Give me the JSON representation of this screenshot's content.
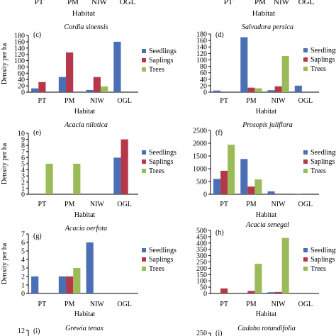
{
  "colors": {
    "seedlings": "#4a6fb5",
    "saplings": "#b5384a",
    "trees": "#9bbb59"
  },
  "top_strip": {
    "left": {
      "ticks": [
        "PT",
        "PM",
        "NIW",
        "OGL"
      ],
      "xlabel": "Habitat"
    },
    "right": {
      "ticks": [
        "PT",
        "PM",
        "NIW",
        "OGL"
      ],
      "xlabel": "Habitat"
    }
  },
  "legend": [
    "Seedlings",
    "Saplings",
    "Trees"
  ],
  "chart_data": [
    {
      "type": "bar",
      "panel": "(c)",
      "title": "Cordia sinensis",
      "categories": [
        "PT",
        "PM",
        "NIW",
        "OGL"
      ],
      "xlabel": "Habitat",
      "ylabel": "Density per ha",
      "ylim": [
        0,
        180
      ],
      "yticks": [
        0,
        20,
        40,
        60,
        80,
        100,
        120,
        140,
        160,
        180
      ],
      "legend": "right",
      "series": [
        {
          "name": "Seedlings",
          "values": [
            12,
            48,
            7,
            160
          ]
        },
        {
          "name": "Saplings",
          "values": [
            32,
            126,
            48,
            0
          ]
        },
        {
          "name": "Trees",
          "values": [
            0,
            0,
            18,
            0
          ]
        }
      ]
    },
    {
      "type": "bar",
      "panel": "(d)",
      "title": "Salvadora persica",
      "categories": [
        "PT",
        "PM",
        "NIW",
        "OGL"
      ],
      "xlabel": "Habitat",
      "ylabel": "",
      "ylim": [
        0,
        180
      ],
      "yticks": [
        0,
        20,
        40,
        60,
        80,
        100,
        120,
        140,
        160,
        180
      ],
      "legend": "right",
      "series": [
        {
          "name": "Seedlings",
          "values": [
            5,
            170,
            6,
            20
          ]
        },
        {
          "name": "Saplings",
          "values": [
            0,
            14,
            18,
            0
          ]
        },
        {
          "name": "Trees",
          "values": [
            0,
            12,
            112,
            0
          ]
        }
      ]
    },
    {
      "type": "bar",
      "panel": "(e)",
      "title": "Acacia nilotica",
      "categories": [
        "PT",
        "PM",
        "NIW",
        "OGL"
      ],
      "xlabel": "Habitat",
      "ylabel": "Density per ha",
      "ylim": [
        0,
        10
      ],
      "yticks": [
        0,
        1,
        2,
        3,
        4,
        5,
        6,
        7,
        8,
        9,
        10
      ],
      "legend": "right",
      "series": [
        {
          "name": "Seedlings",
          "values": [
            0,
            0,
            0,
            6
          ]
        },
        {
          "name": "Saplings",
          "values": [
            0,
            0,
            0,
            9
          ]
        },
        {
          "name": "Trees",
          "values": [
            5,
            5,
            0,
            0
          ]
        }
      ]
    },
    {
      "type": "bar",
      "panel": "(f)",
      "title": "Prosopis juliflora",
      "categories": [
        "PT",
        "PM",
        "NIW",
        "OGL"
      ],
      "xlabel": "Habitat",
      "ylabel": "",
      "ylim": [
        0,
        2500
      ],
      "yticks": [
        0,
        500,
        1000,
        1500,
        2000,
        2500
      ],
      "legend": "right",
      "series": [
        {
          "name": "Seedlings",
          "values": [
            600,
            1380,
            110,
            10
          ]
        },
        {
          "name": "Saplings",
          "values": [
            920,
            300,
            0,
            0
          ]
        },
        {
          "name": "Trees",
          "values": [
            1940,
            580,
            0,
            0
          ]
        }
      ]
    },
    {
      "type": "bar",
      "panel": "(g)",
      "title": "Acacia oerfota",
      "categories": [
        "PT",
        "PM",
        "NIW",
        "OGL"
      ],
      "xlabel": "Habitat",
      "ylabel": "Density per ha",
      "ylim": [
        0,
        7
      ],
      "yticks": [
        0,
        1,
        2,
        3,
        4,
        5,
        6,
        7
      ],
      "legend": "right",
      "series": [
        {
          "name": "Seedlings",
          "values": [
            2,
            2,
            6,
            0
          ]
        },
        {
          "name": "Saplings",
          "values": [
            0,
            2,
            0,
            0
          ]
        },
        {
          "name": "Trees",
          "values": [
            0,
            3,
            0,
            0
          ]
        }
      ]
    },
    {
      "type": "bar",
      "panel": "(h)",
      "title": "Acacia senegal",
      "categories": [
        "PT",
        "PM",
        "NIW",
        "OGL"
      ],
      "xlabel": "Habitat",
      "ylabel": "",
      "ylim": [
        0,
        500
      ],
      "yticks": [
        0,
        50,
        100,
        150,
        200,
        250,
        300,
        350,
        400,
        450,
        500
      ],
      "legend": "right",
      "series": [
        {
          "name": "Seedlings",
          "values": [
            0,
            0,
            10,
            0
          ]
        },
        {
          "name": "Saplings",
          "values": [
            40,
            20,
            12,
            0
          ]
        },
        {
          "name": "Trees",
          "values": [
            0,
            235,
            440,
            0
          ]
        }
      ]
    }
  ],
  "bottom_strip": {
    "left": {
      "panel": "(i)",
      "title": "Grewia tenax",
      "ytick": "12"
    },
    "right": {
      "panel": "(j)",
      "title": "Cadaba rotundifolia",
      "ytick": "250"
    }
  }
}
